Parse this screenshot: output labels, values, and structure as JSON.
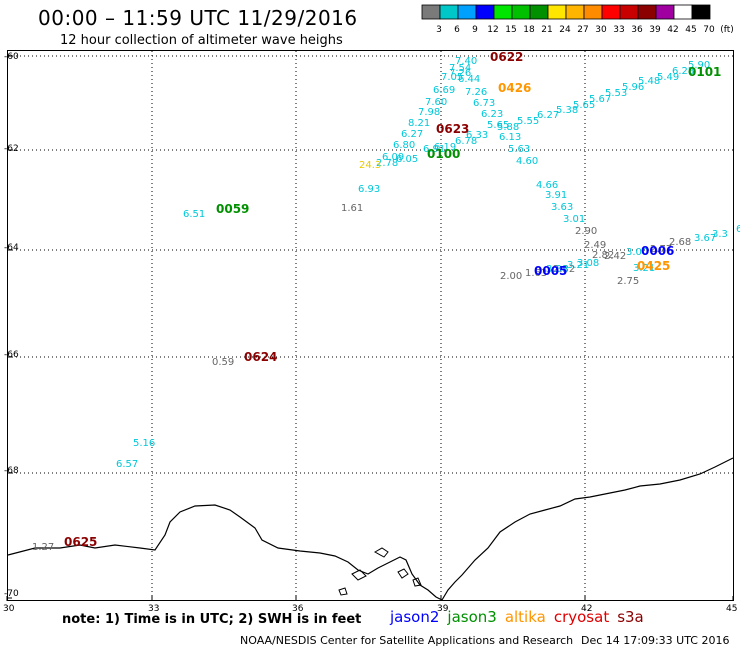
{
  "header": {
    "title": "00:00  –  11:59 UTC 11/29/2016",
    "subtitle": "12 hour collection of altimeter wave heighs"
  },
  "colorbar": {
    "labels": [
      "3",
      "6",
      "9",
      "12",
      "15",
      "18",
      "21",
      "24",
      "27",
      "30",
      "33",
      "36",
      "39",
      "42",
      "45",
      "70",
      "(ft)"
    ],
    "colors": [
      "#7a7a7a",
      "#00c8c8",
      "#00a0ff",
      "#0000ff",
      "#00e600",
      "#00c000",
      "#009000",
      "#ffe600",
      "#ffb400",
      "#ff8c00",
      "#ff0000",
      "#c80000",
      "#8b0000",
      "#a000a0",
      "#ffffff",
      "#000000"
    ]
  },
  "axes": {
    "lat_labels": [
      "-60",
      "-62",
      "-64",
      "-66",
      "-68",
      "-70"
    ],
    "lon_labels": [
      "30",
      "33",
      "36",
      "39",
      "42",
      "45"
    ]
  },
  "observations": [
    {
      "text": "7.40",
      "color": "#00c8d8"
    },
    {
      "text": "7.54",
      "color": "#00c8d8"
    },
    {
      "text": "7.26",
      "color": "#00c8d8"
    },
    {
      "text": "7.05",
      "color": "#00c8d8"
    },
    {
      "text": "6.44",
      "color": "#00c8d8"
    },
    {
      "text": "6.69",
      "color": "#00c8d8"
    },
    {
      "text": "7.26",
      "color": "#00c8d8"
    },
    {
      "text": "7.60",
      "color": "#00c8d8"
    },
    {
      "text": "6.73",
      "color": "#00c8d8"
    },
    {
      "text": "7.98",
      "color": "#00c8d8"
    },
    {
      "text": "6.23",
      "color": "#00c8d8"
    },
    {
      "text": "8.21",
      "color": "#00c8d8"
    },
    {
      "text": "5.65",
      "color": "#00c8d8"
    },
    {
      "text": "5.88",
      "color": "#00c8d8"
    },
    {
      "text": "6.27",
      "color": "#00c8d8"
    },
    {
      "text": "6.13",
      "color": "#00c8d8"
    },
    {
      "text": "6.33",
      "color": "#00c8d8"
    },
    {
      "text": "6.80",
      "color": "#00c8d8"
    },
    {
      "text": "6.78",
      "color": "#00c8d8"
    },
    {
      "text": "6.19",
      "color": "#00c8d8"
    },
    {
      "text": "6.91",
      "color": "#00c8d8"
    },
    {
      "text": "6.05",
      "color": "#00c8d8"
    },
    {
      "text": "6.09",
      "color": "#00c8d8"
    },
    {
      "text": "2.78",
      "color": "#00c8d8"
    },
    {
      "text": "24.3",
      "color": "#e8c800"
    },
    {
      "text": "6.93",
      "color": "#00c8d8"
    },
    {
      "text": "1.61",
      "color": "#666666"
    },
    {
      "text": "5.63",
      "color": "#00c8d8"
    },
    {
      "text": "4.60",
      "color": "#00c8d8"
    },
    {
      "text": "4.66",
      "color": "#00c8d8"
    },
    {
      "text": "3.91",
      "color": "#00c8d8"
    },
    {
      "text": "3.63",
      "color": "#00c8d8"
    },
    {
      "text": "3.01",
      "color": "#00c8d8"
    },
    {
      "text": "2.90",
      "color": "#666666"
    },
    {
      "text": "2.49",
      "color": "#666666"
    },
    {
      "text": "2.82",
      "color": "#666666"
    },
    {
      "text": "2.42",
      "color": "#666666"
    },
    {
      "text": "3.00",
      "color": "#00c8d8"
    },
    {
      "text": "2.77",
      "color": "#666666"
    },
    {
      "text": "2.68",
      "color": "#666666"
    },
    {
      "text": "3.08",
      "color": "#00c8d8"
    },
    {
      "text": "2.32",
      "color": "#666666"
    },
    {
      "text": "3.38",
      "color": "#00c8d8"
    },
    {
      "text": "3.21",
      "color": "#00c8d8"
    },
    {
      "text": "1.63",
      "color": "#666666"
    },
    {
      "text": "2.00",
      "color": "#666666"
    },
    {
      "text": "2.75",
      "color": "#666666"
    },
    {
      "text": "3.21",
      "color": "#00c8d8"
    },
    {
      "text": "3.67",
      "color": "#00c8d8"
    },
    {
      "text": "3.3",
      "color": "#00c8d8"
    },
    {
      "text": "6.41",
      "color": "#00c8d8"
    },
    {
      "text": "5.90",
      "color": "#00c8d8"
    },
    {
      "text": "6.28",
      "color": "#00c8d8"
    },
    {
      "text": "5.49",
      "color": "#00c8d8"
    },
    {
      "text": "5.48",
      "color": "#00c8d8"
    },
    {
      "text": "5.96",
      "color": "#00c8d8"
    },
    {
      "text": "5.53",
      "color": "#00c8d8"
    },
    {
      "text": "5.67",
      "color": "#00c8d8"
    },
    {
      "text": "5.65",
      "color": "#00c8d8"
    },
    {
      "text": "5.38",
      "color": "#00c8d8"
    },
    {
      "text": "6.27",
      "color": "#00c8d8"
    },
    {
      "text": "5.55",
      "color": "#00c8d8"
    },
    {
      "text": "6.51",
      "color": "#00c8d8"
    },
    {
      "text": "0.59",
      "color": "#666666"
    },
    {
      "text": "5.16",
      "color": "#00c8d8"
    },
    {
      "text": "6.57",
      "color": "#00c8d8"
    },
    {
      "text": "1.27",
      "color": "#666666"
    }
  ],
  "time_labels": [
    {
      "text": "0622",
      "color": "#8b0000"
    },
    {
      "text": "0426",
      "color": "#ff9600"
    },
    {
      "text": "0101",
      "color": "#009000"
    },
    {
      "text": "0623",
      "color": "#8b0000"
    },
    {
      "text": "0100",
      "color": "#009000"
    },
    {
      "text": "0059",
      "color": "#009000"
    },
    {
      "text": "0006",
      "color": "#0000ff"
    },
    {
      "text": "0005",
      "color": "#0000ff"
    },
    {
      "text": "0425",
      "color": "#ff9600"
    },
    {
      "text": "0624",
      "color": "#8b0000"
    },
    {
      "text": "0625",
      "color": "#8b0000"
    }
  ],
  "note": "note: 1) Time is in UTC; 2) SWH is in feet",
  "legend": [
    {
      "name": "jason2",
      "color": "#0000ff"
    },
    {
      "name": "jason3",
      "color": "#009000"
    },
    {
      "name": "altika",
      "color": "#ff9600"
    },
    {
      "name": "cryosat",
      "color": "#e00000"
    },
    {
      "name": "s3a",
      "color": "#8b0000"
    }
  ],
  "footer": {
    "center": "NOAA/NESDIS Center for Satellite Applications and Research",
    "timestamp": "Dec 14 17:09:33 UTC 2016"
  }
}
